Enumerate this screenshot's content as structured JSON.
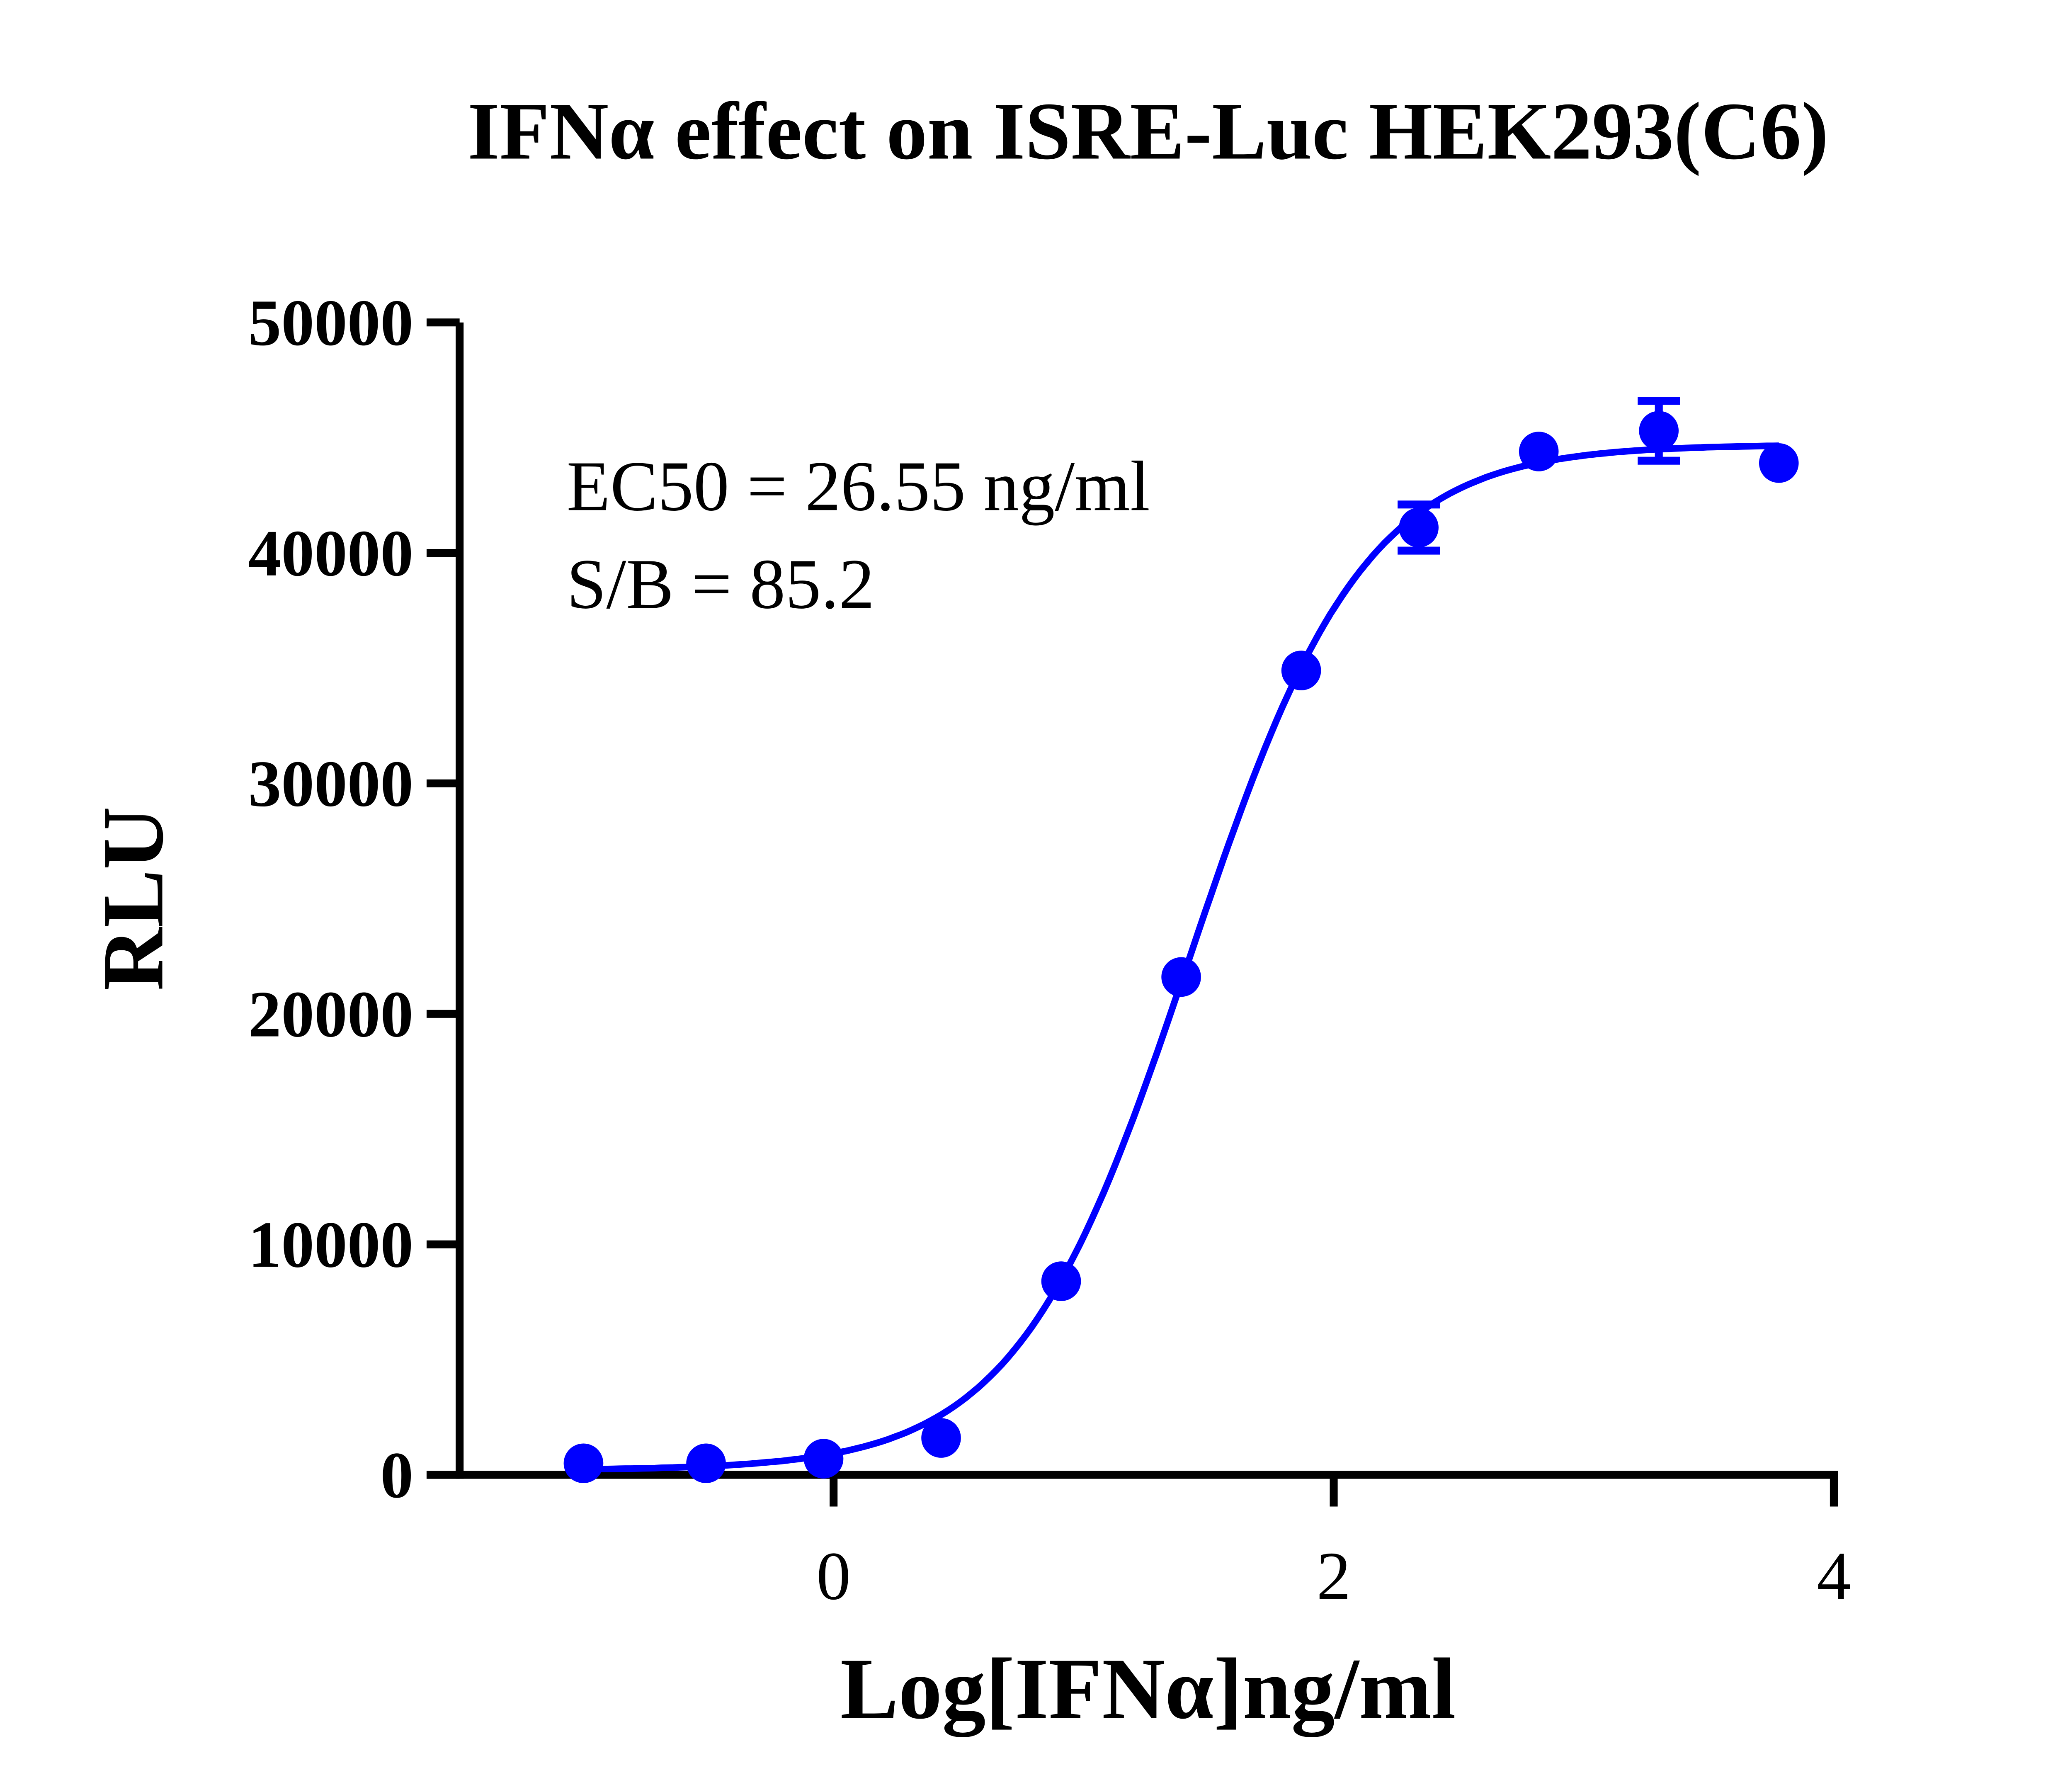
{
  "chart_data": {
    "type": "scatter",
    "title": "IFNα effect on ISRE-Luc HEK293(C6)",
    "xlabel": "Log[IFNα]ng/ml",
    "ylabel": "RLU",
    "xlim": [
      -1.5,
      4
    ],
    "ylim": [
      0,
      50000
    ],
    "x_ticks": [
      0,
      2,
      4
    ],
    "x_tick_labels": [
      "0",
      "2",
      "4"
    ],
    "y_ticks": [
      0,
      10000,
      20000,
      30000,
      40000,
      50000
    ],
    "y_tick_labels": [
      "0",
      "10000",
      "20000",
      "30000",
      "40000",
      "50000"
    ],
    "grid": false,
    "series": [
      {
        "x": [
          -1.0,
          -0.51,
          -0.04,
          0.43,
          0.91,
          1.39,
          1.87,
          2.34,
          2.82,
          3.3,
          3.78
        ],
        "y": [
          500,
          500,
          700,
          1600,
          8400,
          21600,
          34900,
          41100,
          44400,
          45300,
          43900
        ],
        "error": [
          0,
          0,
          0,
          0,
          0,
          0,
          0,
          1000,
          0,
          1300,
          0
        ],
        "color": "#0000ff"
      }
    ],
    "fit": {
      "model": "four-parameter logistic",
      "bottom": 200,
      "top": 44700,
      "logEC50": 1.424,
      "hill": 1.25,
      "color": "#0000ff"
    },
    "annotations": [
      "EC50 = 26.55 ng/ml",
      "S/B = 85.2"
    ]
  }
}
